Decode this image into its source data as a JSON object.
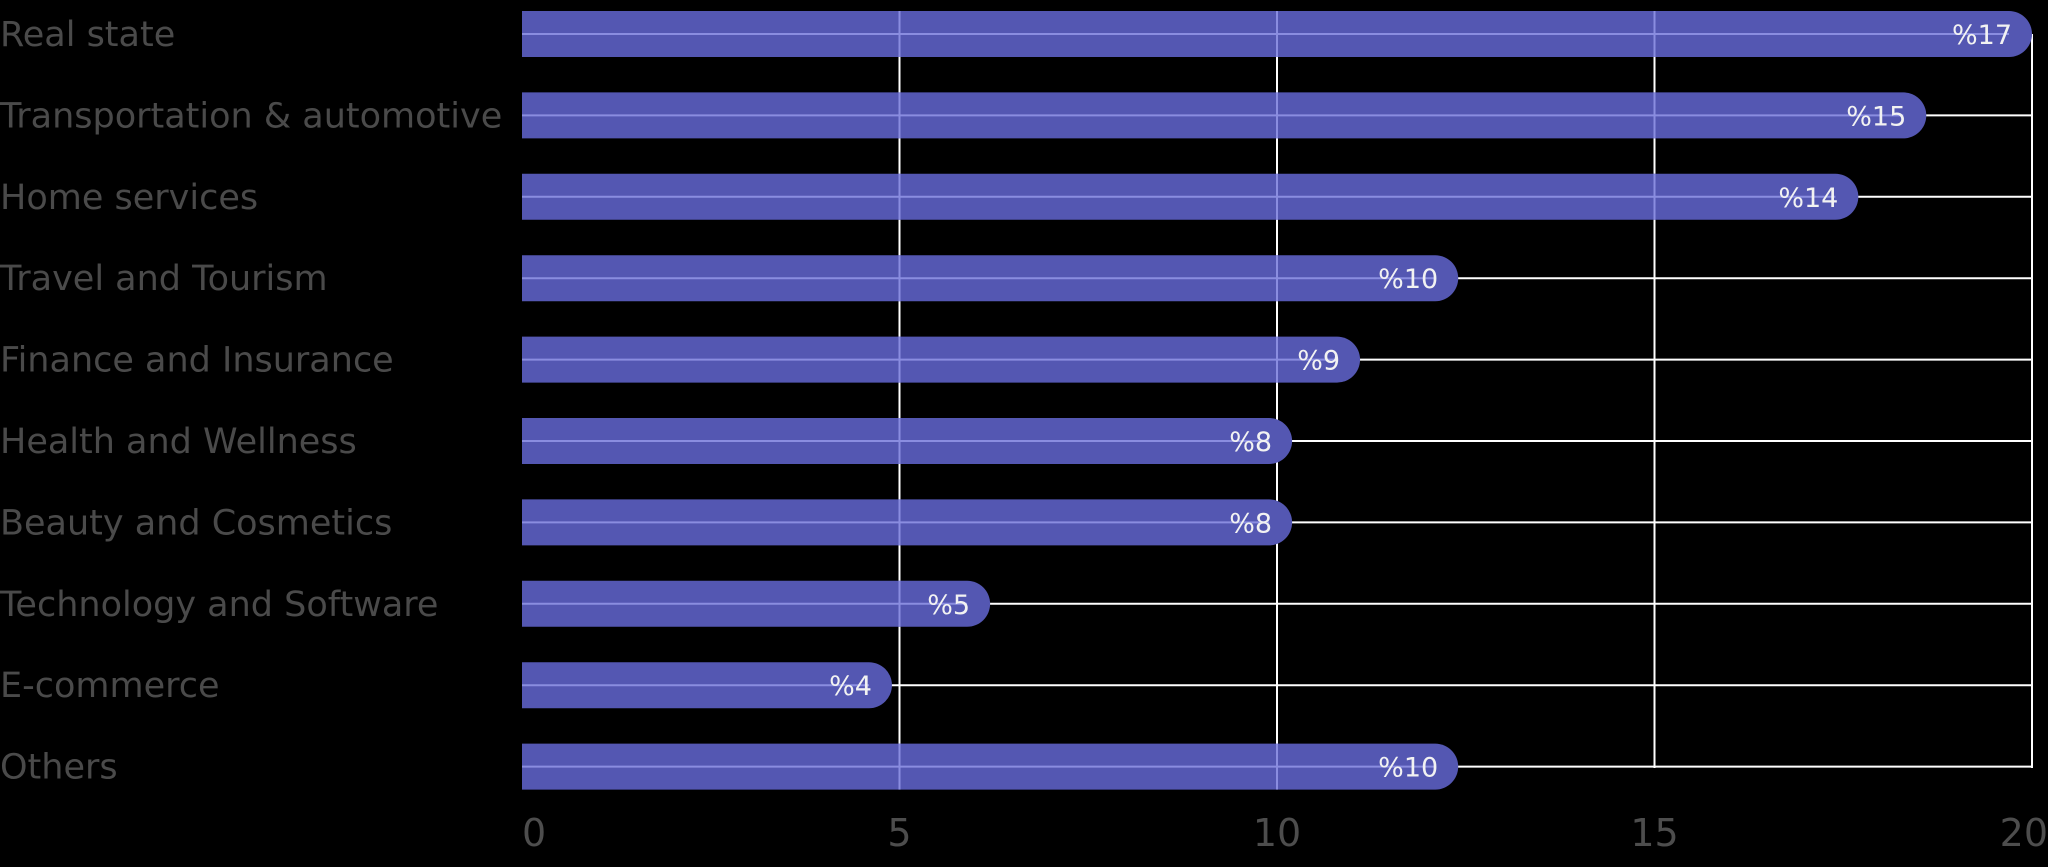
{
  "chart_data": {
    "type": "bar",
    "orientation": "horizontal",
    "categories": [
      "Real state",
      "Transportation & automotive",
      "Home services",
      "Travel and Tourism",
      "Finance and Insurance",
      "Health and Wellness",
      "Beauty and Cosmetics",
      "Technology and Software",
      "E-commerce",
      "Others"
    ],
    "values": [
      17,
      15,
      14,
      10,
      9,
      8,
      8,
      5,
      4,
      10
    ],
    "value_labels": [
      "%17",
      "%15",
      "%14",
      "%10",
      "%9",
      "%8",
      "%8",
      "%5",
      "%4",
      "%10"
    ],
    "bar_extent": [
      20,
      18.6,
      17.7,
      12.4,
      11.1,
      10.2,
      10.2,
      6.2,
      4.9,
      12.4
    ],
    "xlim": [
      0,
      20
    ],
    "xticks": [
      0,
      5,
      10,
      15,
      20
    ],
    "grid": true,
    "colors": {
      "background": "#000000",
      "bar": "#5457b2",
      "grid": "#ffffff",
      "category_text": "#4a4a4a",
      "tick_text": "#4d4d4d",
      "value_text": "#f2f2f2"
    }
  }
}
